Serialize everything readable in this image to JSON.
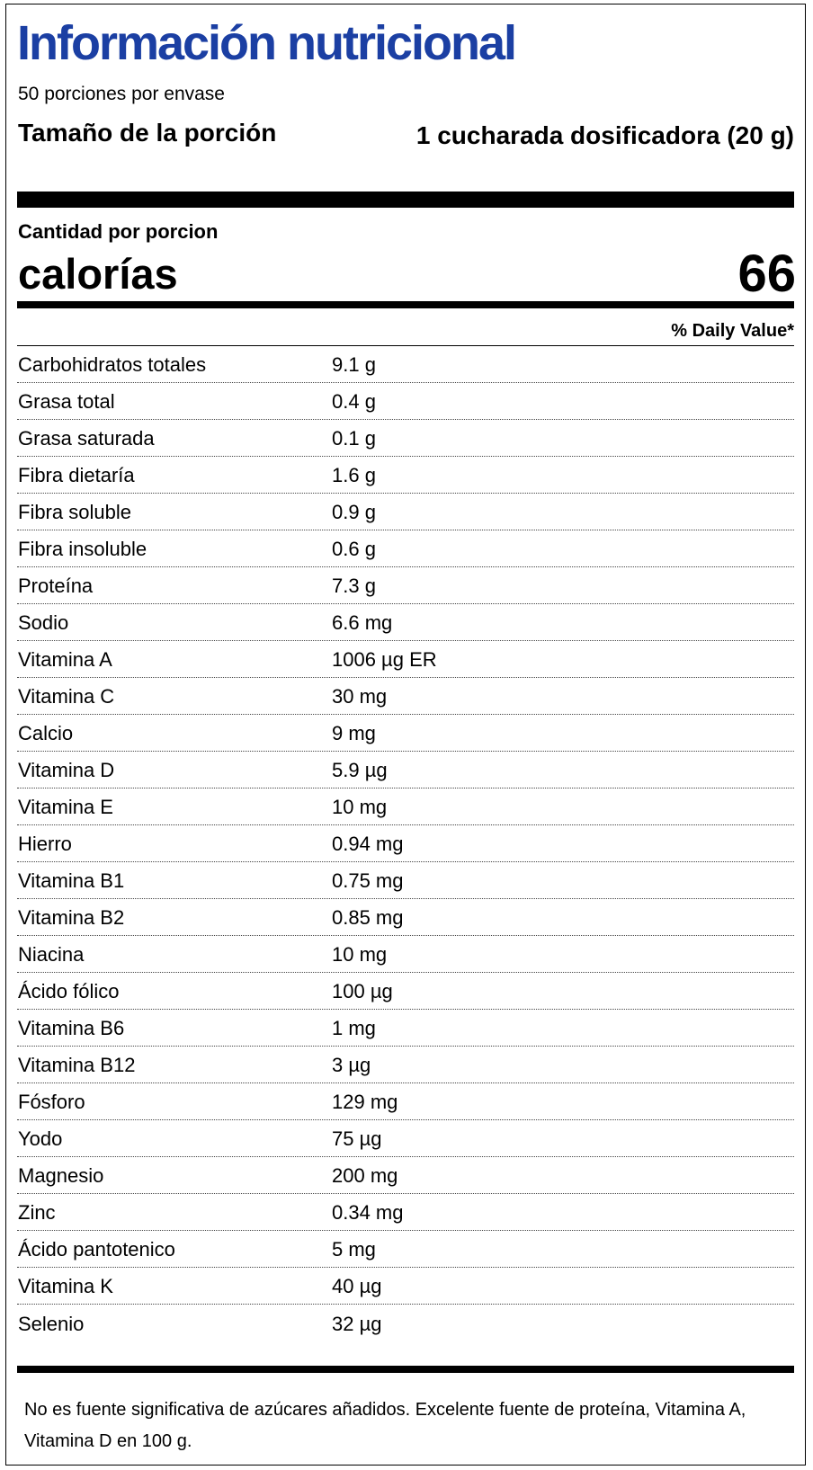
{
  "title": "Información nutricional",
  "servings": "50 porciones por envase",
  "serving_size": {
    "label": "Tamaño de la porción",
    "value": "1 cucharada dosificadora (20 g)"
  },
  "amount_per_serving": "Cantidad por porcion",
  "calories": {
    "label": "calorías",
    "value": "66"
  },
  "daily_value_header": "% Daily Value*",
  "rows": [
    [
      "Carbohidratos totales",
      "9.1 g"
    ],
    [
      "Grasa total",
      "0.4 g"
    ],
    [
      "Grasa saturada",
      "0.1 g"
    ],
    [
      "Fibra dietaría",
      "1.6 g"
    ],
    [
      "Fibra soluble",
      "0.9 g"
    ],
    [
      "Fibra insoluble",
      "0.6 g"
    ],
    [
      "Proteína",
      "7.3 g"
    ],
    [
      "Sodio",
      "6.6 mg"
    ],
    [
      "Vitamina A",
      "1006 µg ER"
    ],
    [
      "Vitamina C",
      "30 mg"
    ],
    [
      "Calcio",
      "9 mg"
    ],
    [
      "Vitamina D",
      "5.9 µg"
    ],
    [
      "Vitamina E",
      "10 mg"
    ],
    [
      "Hierro",
      "0.94 mg"
    ],
    [
      "Vitamina B1",
      "0.75 mg"
    ],
    [
      "Vitamina B2",
      "0.85 mg"
    ],
    [
      "Niacina",
      "10 mg"
    ],
    [
      "Ácido fólico",
      "100 µg"
    ],
    [
      "Vitamina B6",
      "1 mg"
    ],
    [
      "Vitamina B12",
      "3 µg"
    ],
    [
      "Fósforo",
      "129 mg"
    ],
    [
      "Yodo",
      "75 µg"
    ],
    [
      "Magnesio",
      "200 mg"
    ],
    [
      "Zinc",
      "0.34 mg"
    ],
    [
      "Ácido pantotenico",
      "5 mg"
    ],
    [
      "Vitamina K",
      "40 µg"
    ],
    [
      "Selenio",
      "32 µg"
    ]
  ],
  "footnote": "No es fuente significativa de azúcares añadidos. Excelente fuente de proteína, Vitamina A, Vitamina D en 100 g."
}
